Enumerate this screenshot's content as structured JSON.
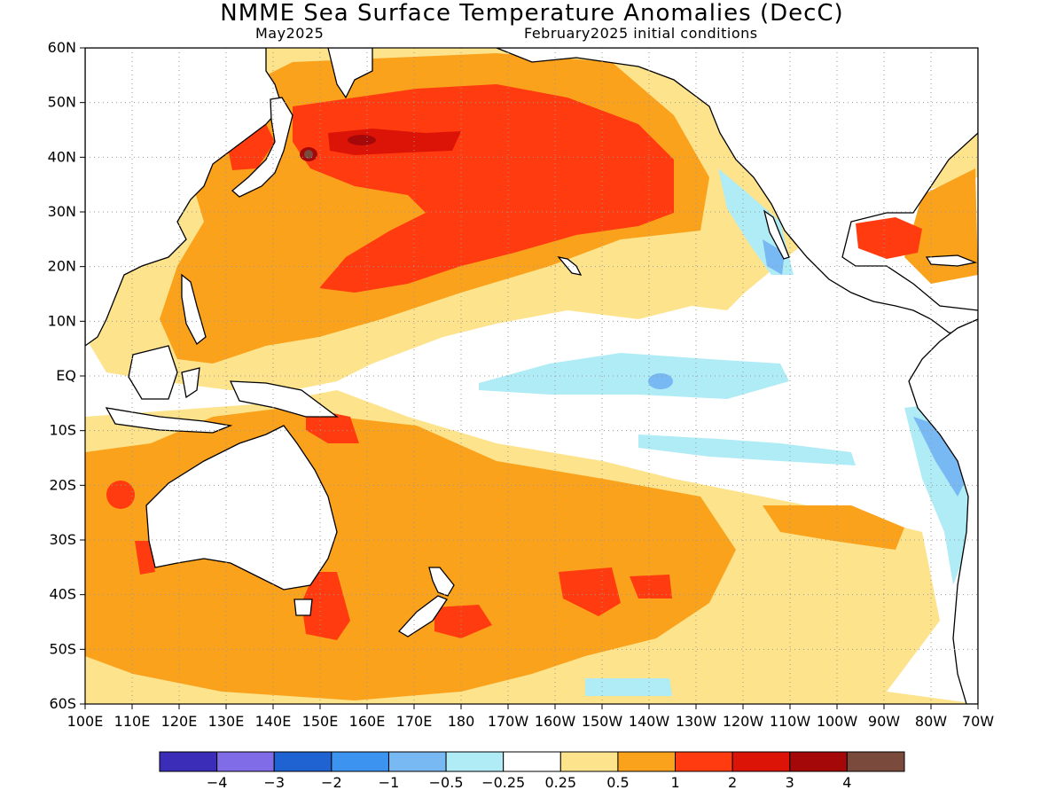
{
  "title": "NMME Sea Surface Temperature Anomalies (DecC)",
  "subtitle_left": "May2025",
  "subtitle_right": "February2025 initial conditions",
  "lat_labels": [
    "60N",
    "50N",
    "40N",
    "30N",
    "20N",
    "10N",
    "EQ",
    "10S",
    "20S",
    "30S",
    "40S",
    "50S",
    "60S"
  ],
  "lon_labels": [
    "100E",
    "110E",
    "120E",
    "130E",
    "140E",
    "150E",
    "160E",
    "170E",
    "180",
    "170W",
    "160W",
    "150W",
    "140W",
    "130W",
    "120W",
    "110W",
    "100W",
    "90W",
    "80W",
    "70W"
  ],
  "colorbar": {
    "colors": [
      "#3c2db8",
      "#7f6ce6",
      "#1f62d1",
      "#3d94f0",
      "#78b8f3",
      "#b0ecf6",
      "#ffffff",
      "#fde38c",
      "#fba21c",
      "#ff3b0f",
      "#dc1408",
      "#a40808",
      "#7a4a3c"
    ],
    "labels": [
      "−4",
      "−3",
      "−2",
      "−1",
      "−0.5",
      "−0.25",
      "0.25",
      "0.5",
      "1",
      "2",
      "3",
      "4"
    ]
  }
}
